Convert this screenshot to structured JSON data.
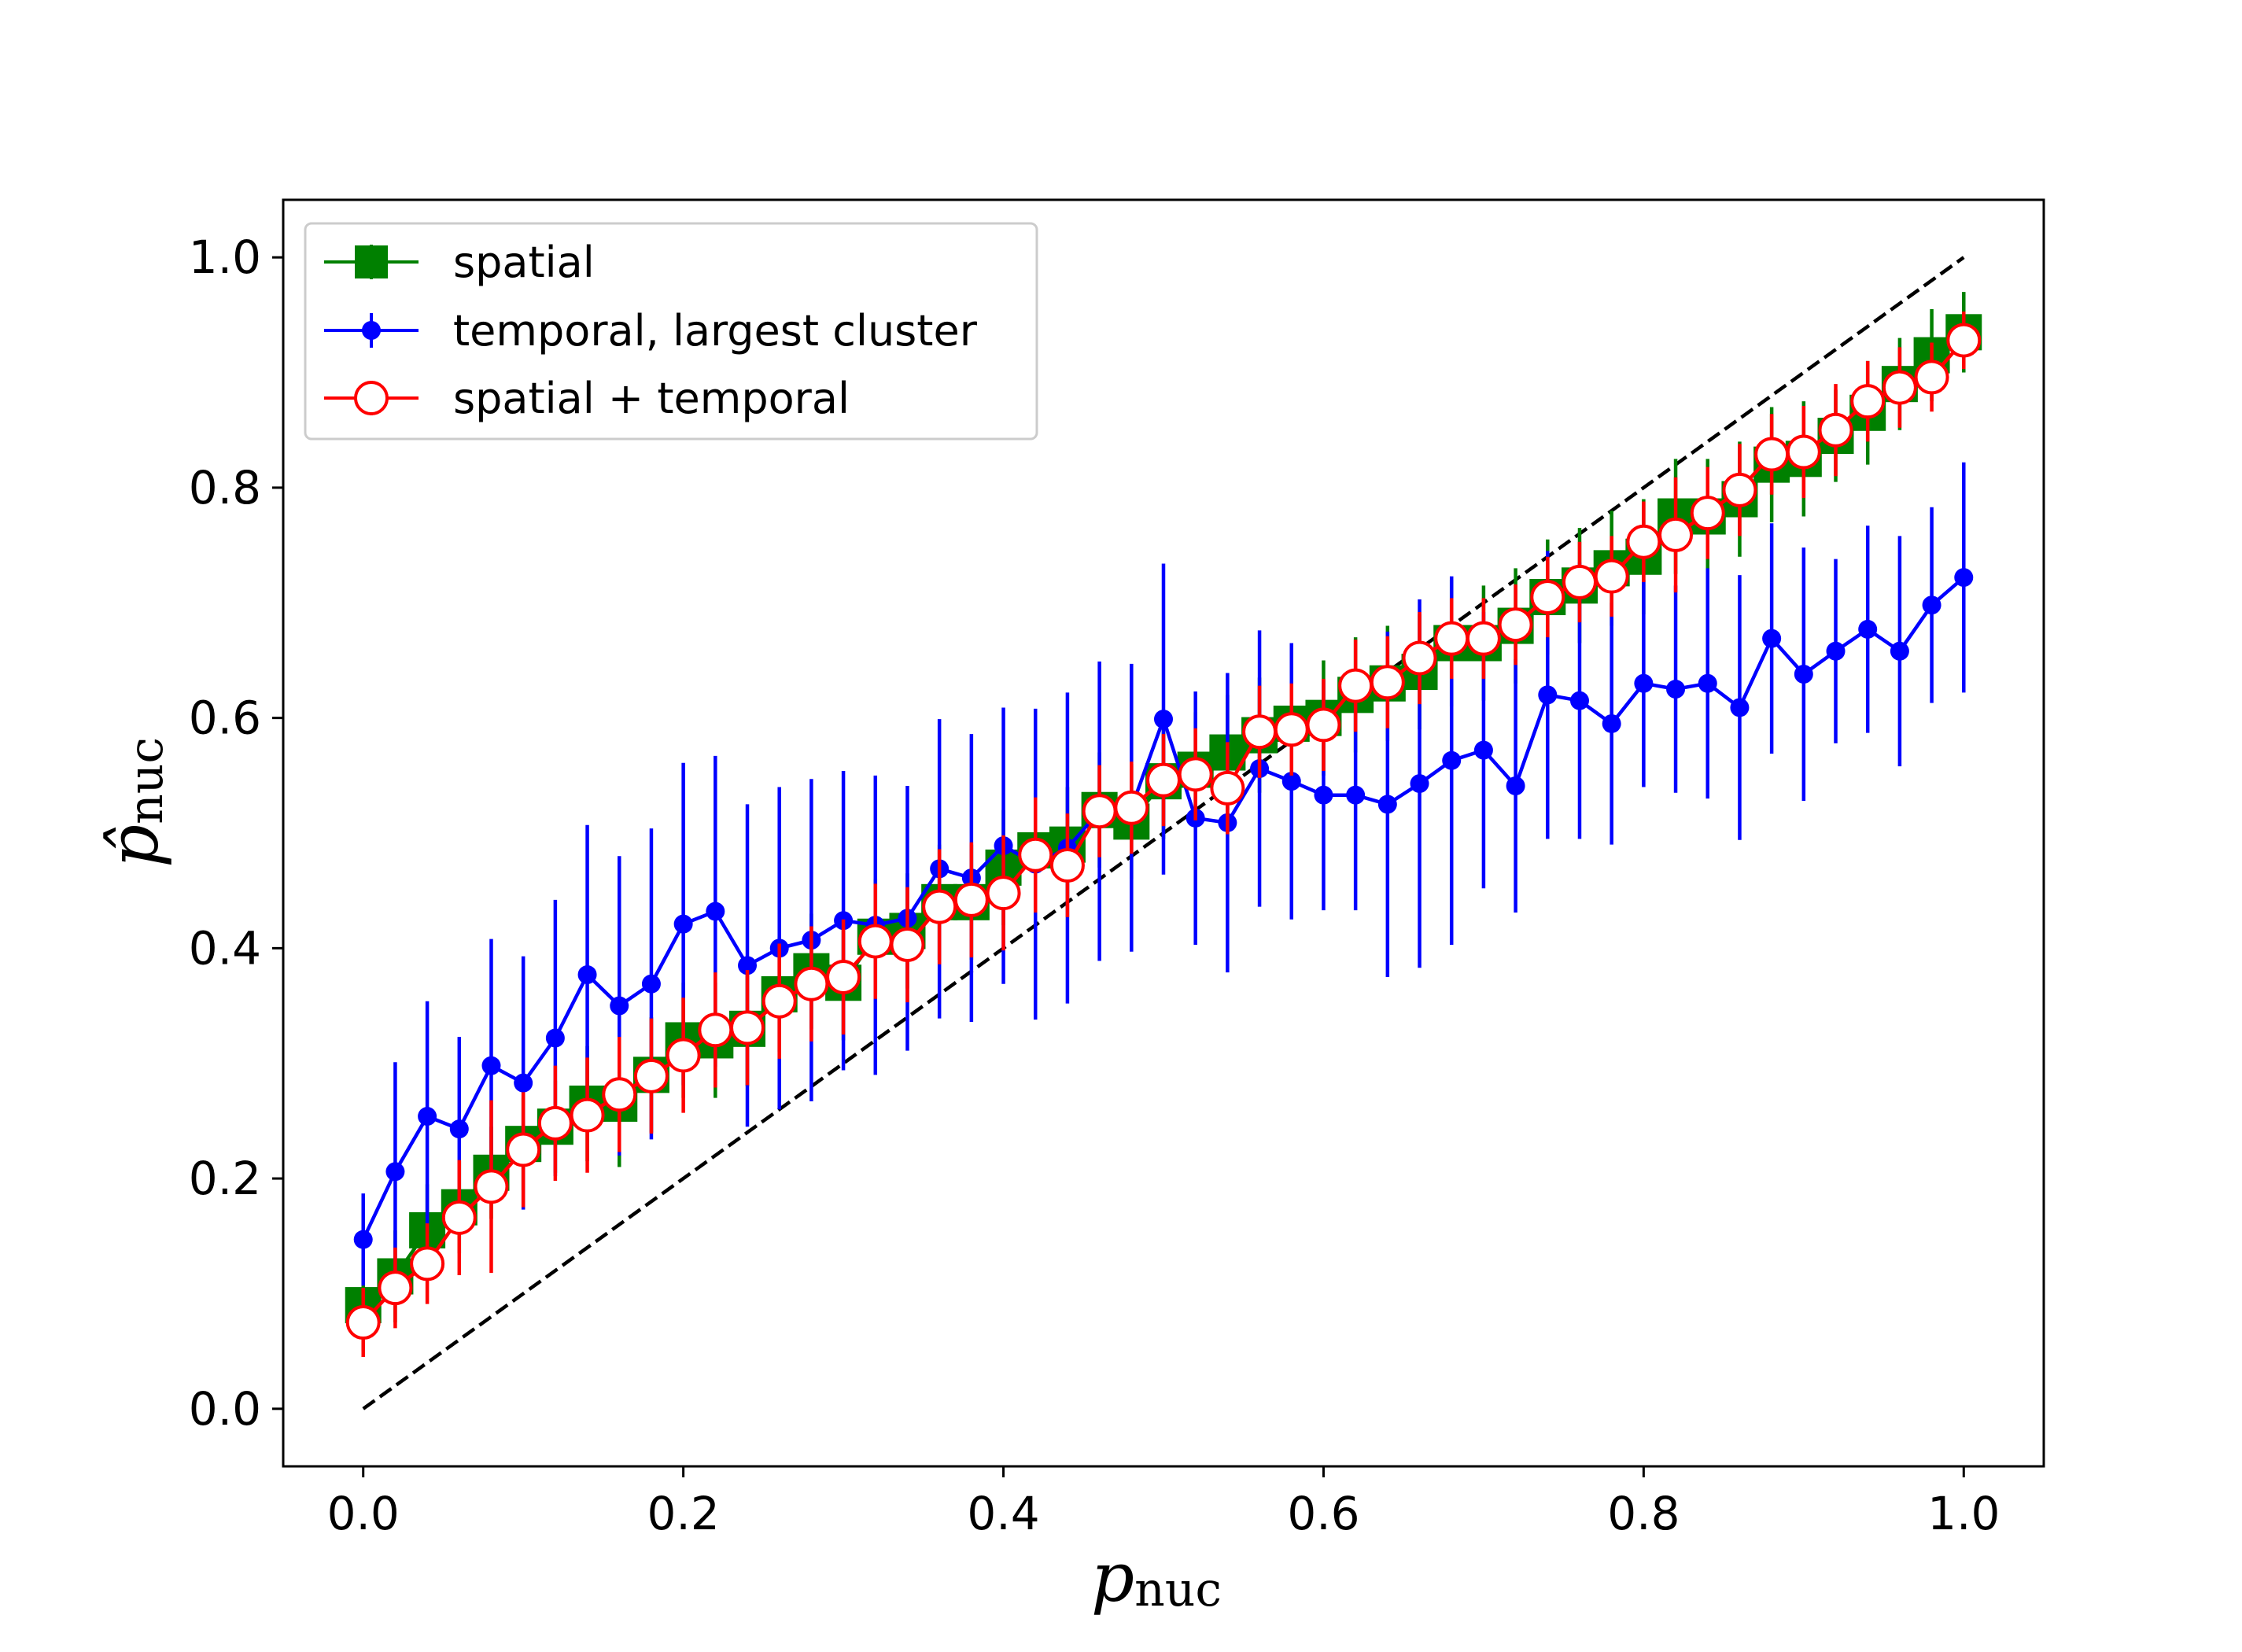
{
  "chart_data": {
    "type": "line",
    "title": "",
    "xlabel": {
      "main": "p",
      "sub": "nuc"
    },
    "ylabel": {
      "main": "p̂",
      "sub": "nuc"
    },
    "xlim": [
      -0.05,
      1.05
    ],
    "ylim": [
      -0.05,
      1.05
    ],
    "xticks": [
      0.0,
      0.2,
      0.4,
      0.6,
      0.8,
      1.0
    ],
    "xtick_labels": [
      "0.0",
      "0.2",
      "0.4",
      "0.6",
      "0.8",
      "1.0"
    ],
    "yticks": [
      0.0,
      0.2,
      0.4,
      0.6,
      0.8,
      1.0
    ],
    "ytick_labels": [
      "0.0",
      "0.2",
      "0.4",
      "0.6",
      "0.8",
      "1.0"
    ],
    "grid": false,
    "legend_position": "top-left",
    "reference_line": {
      "style": "dashed",
      "color": "#000000",
      "from": [
        0,
        0
      ],
      "to": [
        1,
        1
      ]
    },
    "x": [
      0.0,
      0.02,
      0.04,
      0.06,
      0.08,
      0.1,
      0.12,
      0.14,
      0.16,
      0.18,
      0.2,
      0.22,
      0.24,
      0.26,
      0.28,
      0.3,
      0.32,
      0.34,
      0.36,
      0.38,
      0.4,
      0.42,
      0.44,
      0.46,
      0.48,
      0.5,
      0.52,
      0.54,
      0.56,
      0.58,
      0.6,
      0.62,
      0.64,
      0.66,
      0.68,
      0.7,
      0.72,
      0.74,
      0.76,
      0.78,
      0.8,
      0.82,
      0.84,
      0.86,
      0.88,
      0.9,
      0.92,
      0.94,
      0.96,
      0.98,
      1.0
    ],
    "series": [
      {
        "name": "spatial",
        "color": "#008000",
        "marker": "square",
        "values": [
          0.09,
          0.115,
          0.155,
          0.175,
          0.205,
          0.23,
          0.245,
          0.265,
          0.265,
          0.29,
          0.32,
          0.32,
          0.33,
          0.36,
          0.38,
          0.37,
          0.41,
          0.415,
          0.44,
          0.44,
          0.47,
          0.485,
          0.49,
          0.52,
          0.51,
          0.545,
          0.555,
          0.57,
          0.585,
          0.595,
          0.6,
          0.62,
          0.63,
          0.64,
          0.665,
          0.665,
          0.68,
          0.705,
          0.715,
          0.73,
          0.74,
          0.775,
          0.775,
          0.79,
          0.82,
          0.825,
          0.845,
          0.865,
          0.89,
          0.915,
          0.935
        ],
        "errors": [
          0.04,
          0.04,
          0.04,
          0.04,
          0.04,
          0.04,
          0.04,
          0.05,
          0.055,
          0.05,
          0.05,
          0.05,
          0.05,
          0.05,
          0.05,
          0.05,
          0.05,
          0.05,
          0.05,
          0.05,
          0.05,
          0.05,
          0.05,
          0.05,
          0.05,
          0.05,
          0.05,
          0.05,
          0.05,
          0.05,
          0.05,
          0.05,
          0.05,
          0.05,
          0.055,
          0.05,
          0.05,
          0.05,
          0.05,
          0.05,
          0.05,
          0.05,
          0.05,
          0.05,
          0.05,
          0.05,
          0.04,
          0.045,
          0.04,
          0.04,
          0.035
        ]
      },
      {
        "name": "temporal, largest cluster",
        "color": "#0000ff",
        "marker": "circle",
        "values": [
          0.147,
          0.206,
          0.254,
          0.243,
          0.298,
          0.283,
          0.322,
          0.377,
          0.35,
          0.369,
          0.421,
          0.432,
          0.385,
          0.4,
          0.407,
          0.424,
          0.42,
          0.426,
          0.469,
          0.461,
          0.489,
          0.473,
          0.487,
          0.519,
          0.522,
          0.599,
          0.513,
          0.509,
          0.556,
          0.545,
          0.533,
          0.533,
          0.525,
          0.543,
          0.563,
          0.572,
          0.541,
          0.62,
          0.615,
          0.595,
          0.63,
          0.625,
          0.63,
          0.609,
          0.669,
          0.638,
          0.658,
          0.677,
          0.658,
          0.698,
          0.722
        ],
        "errors": [
          0.04,
          0.095,
          0.1,
          0.08,
          0.11,
          0.11,
          0.12,
          0.13,
          0.13,
          0.135,
          0.14,
          0.135,
          0.14,
          0.14,
          0.14,
          0.13,
          0.13,
          0.115,
          0.13,
          0.125,
          0.12,
          0.135,
          0.135,
          0.13,
          0.125,
          0.135,
          0.11,
          0.13,
          0.12,
          0.12,
          0.1,
          0.1,
          0.15,
          0.16,
          0.16,
          0.12,
          0.11,
          0.125,
          0.12,
          0.105,
          0.09,
          0.09,
          0.1,
          0.115,
          0.1,
          0.11,
          0.08,
          0.09,
          0.1,
          0.085,
          0.1
        ]
      },
      {
        "name": "spatial + temporal",
        "color": "#ff0000",
        "marker": "open-circle",
        "values": [
          0.075,
          0.105,
          0.126,
          0.166,
          0.193,
          0.225,
          0.248,
          0.255,
          0.273,
          0.289,
          0.307,
          0.329,
          0.331,
          0.354,
          0.369,
          0.375,
          0.406,
          0.403,
          0.436,
          0.442,
          0.448,
          0.481,
          0.472,
          0.519,
          0.522,
          0.546,
          0.551,
          0.539,
          0.588,
          0.59,
          0.594,
          0.628,
          0.631,
          0.652,
          0.669,
          0.669,
          0.681,
          0.705,
          0.718,
          0.723,
          0.753,
          0.759,
          0.778,
          0.798,
          0.829,
          0.831,
          0.85,
          0.875,
          0.887,
          0.896,
          0.928
        ],
        "errors": [
          0.03,
          0.035,
          0.035,
          0.05,
          0.075,
          0.05,
          0.05,
          0.05,
          0.05,
          0.05,
          0.05,
          0.05,
          0.05,
          0.05,
          0.05,
          0.05,
          0.05,
          0.05,
          0.05,
          0.05,
          0.05,
          0.05,
          0.045,
          0.04,
          0.04,
          0.04,
          0.04,
          0.04,
          0.04,
          0.04,
          0.04,
          0.04,
          0.04,
          0.04,
          0.035,
          0.035,
          0.035,
          0.035,
          0.035,
          0.035,
          0.035,
          0.05,
          0.04,
          0.04,
          0.035,
          0.04,
          0.04,
          0.035,
          0.035,
          0.03,
          0.025
        ]
      }
    ]
  }
}
